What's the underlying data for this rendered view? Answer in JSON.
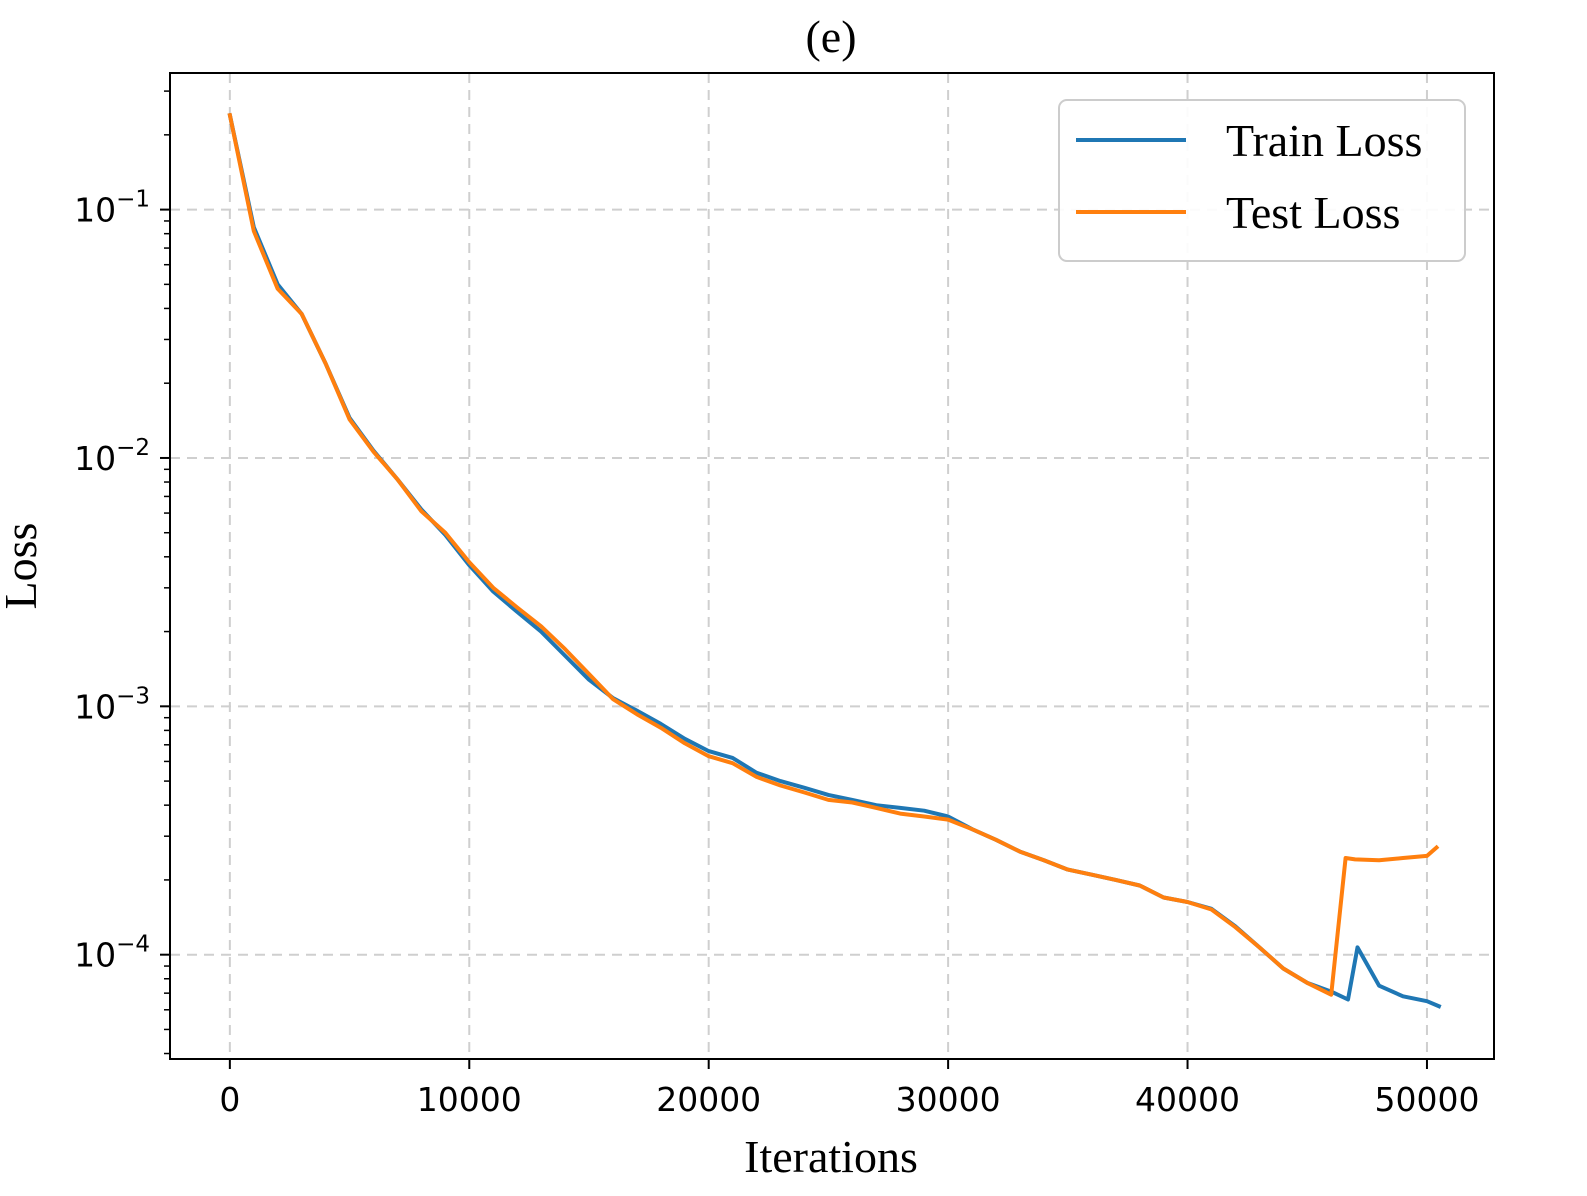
{
  "chart_data": {
    "type": "line",
    "title": "(e)",
    "xlabel": "Iterations",
    "ylabel": "Loss",
    "xlim": [
      -2500,
      52800
    ],
    "ylim_log10": [
      -4.42,
      -0.45
    ],
    "yscale": "log",
    "grid": true,
    "legend_position": "top-right",
    "x_ticks": [
      {
        "value": 0,
        "label": "0"
      },
      {
        "value": 10000,
        "label": "10000"
      },
      {
        "value": 20000,
        "label": "20000"
      },
      {
        "value": 30000,
        "label": "30000"
      },
      {
        "value": 40000,
        "label": "40000"
      },
      {
        "value": 50000,
        "label": "50000"
      }
    ],
    "y_ticks": [
      {
        "value": 0.1,
        "base": "10",
        "exp": "−1"
      },
      {
        "value": 0.01,
        "base": "10",
        "exp": "−2"
      },
      {
        "value": 0.001,
        "base": "10",
        "exp": "−3"
      },
      {
        "value": 0.0001,
        "base": "10",
        "exp": "−4"
      }
    ],
    "series": [
      {
        "name": "Train Loss",
        "color": "#1f77b4",
        "x": [
          0,
          1000,
          2000,
          3000,
          4000,
          5000,
          6000,
          7000,
          8000,
          9000,
          10000,
          11000,
          12000,
          13000,
          14000,
          15000,
          16000,
          17000,
          18000,
          19000,
          20000,
          21000,
          22000,
          23000,
          24000,
          25000,
          26000,
          27000,
          28000,
          29000,
          30000,
          31000,
          32000,
          33000,
          34000,
          35000,
          36000,
          37000,
          38000,
          39000,
          40000,
          41000,
          42000,
          43000,
          44000,
          45000,
          46000,
          46700,
          47100,
          48000,
          49000,
          50000,
          50500
        ],
        "y": [
          0.24,
          0.085,
          0.05,
          0.038,
          0.024,
          0.0145,
          0.0107,
          0.0082,
          0.0062,
          0.0049,
          0.0037,
          0.0029,
          0.0024,
          0.002,
          0.0016,
          0.00128,
          0.00108,
          0.00096,
          0.00085,
          0.00074,
          0.00066,
          0.00062,
          0.00054,
          0.0005,
          0.00047,
          0.00044,
          0.00042,
          0.0004,
          0.00039,
          0.00038,
          0.00036,
          0.00032,
          0.00029,
          0.00026,
          0.00024,
          0.00022,
          0.00021,
          0.0002,
          0.00019,
          0.00017,
          0.000163,
          0.000153,
          0.00013,
          0.000107,
          8.8e-05,
          7.7e-05,
          7.1e-05,
          6.6e-05,
          0.000107,
          7.5e-05,
          6.8e-05,
          6.5e-05,
          6.2e-05
        ]
      },
      {
        "name": "Test Loss",
        "color": "#ff7f0e",
        "x": [
          0,
          1000,
          2000,
          3000,
          4000,
          5000,
          6000,
          7000,
          8000,
          9000,
          10000,
          11000,
          12000,
          13000,
          14000,
          15000,
          16000,
          17000,
          18000,
          19000,
          20000,
          21000,
          22000,
          23000,
          24000,
          25000,
          26000,
          27000,
          28000,
          29000,
          30000,
          31000,
          32000,
          33000,
          34000,
          35000,
          36000,
          37000,
          38000,
          39000,
          40000,
          41000,
          42000,
          43000,
          44000,
          45000,
          46000,
          46600,
          47000,
          48000,
          49000,
          50000,
          50400
        ],
        "y": [
          0.24,
          0.082,
          0.048,
          0.038,
          0.024,
          0.0143,
          0.0106,
          0.0082,
          0.0061,
          0.005,
          0.0038,
          0.003,
          0.0025,
          0.0021,
          0.0017,
          0.00135,
          0.00107,
          0.00093,
          0.00082,
          0.00071,
          0.00063,
          0.00059,
          0.00052,
          0.00048,
          0.00045,
          0.00042,
          0.00041,
          0.00039,
          0.00037,
          0.00036,
          0.00035,
          0.00032,
          0.00029,
          0.00026,
          0.00024,
          0.00022,
          0.00021,
          0.0002,
          0.00019,
          0.00017,
          0.000163,
          0.000152,
          0.000129,
          0.000107,
          8.8e-05,
          7.7e-05,
          6.9e-05,
          0.000245,
          0.000242,
          0.00024,
          0.000245,
          0.00025,
          0.00027
        ]
      }
    ]
  }
}
